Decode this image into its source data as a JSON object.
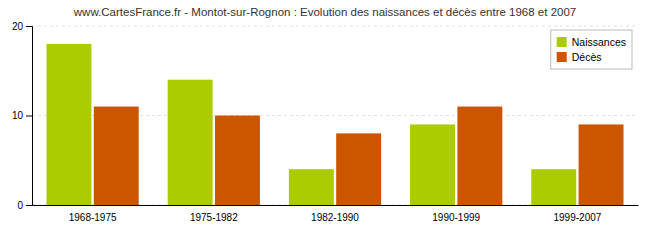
{
  "chart_data": {
    "type": "bar",
    "title": "www.CartesFrance.fr - Montot-sur-Rognon : Evolution des naissances et décès entre 1968 et 2007",
    "categories": [
      "1968-1975",
      "1975-1982",
      "1982-1990",
      "1990-1999",
      "1999-2007"
    ],
    "series": [
      {
        "name": "Naissances",
        "color": "#AACC00",
        "values": [
          18,
          14,
          4,
          9,
          4
        ]
      },
      {
        "name": "Décès",
        "color": "#CC5500",
        "values": [
          11,
          10,
          8,
          11,
          9
        ]
      }
    ],
    "ylim": [
      0,
      20
    ],
    "yticks": [
      0,
      10,
      20
    ],
    "grid": true,
    "legend": "top-right"
  }
}
